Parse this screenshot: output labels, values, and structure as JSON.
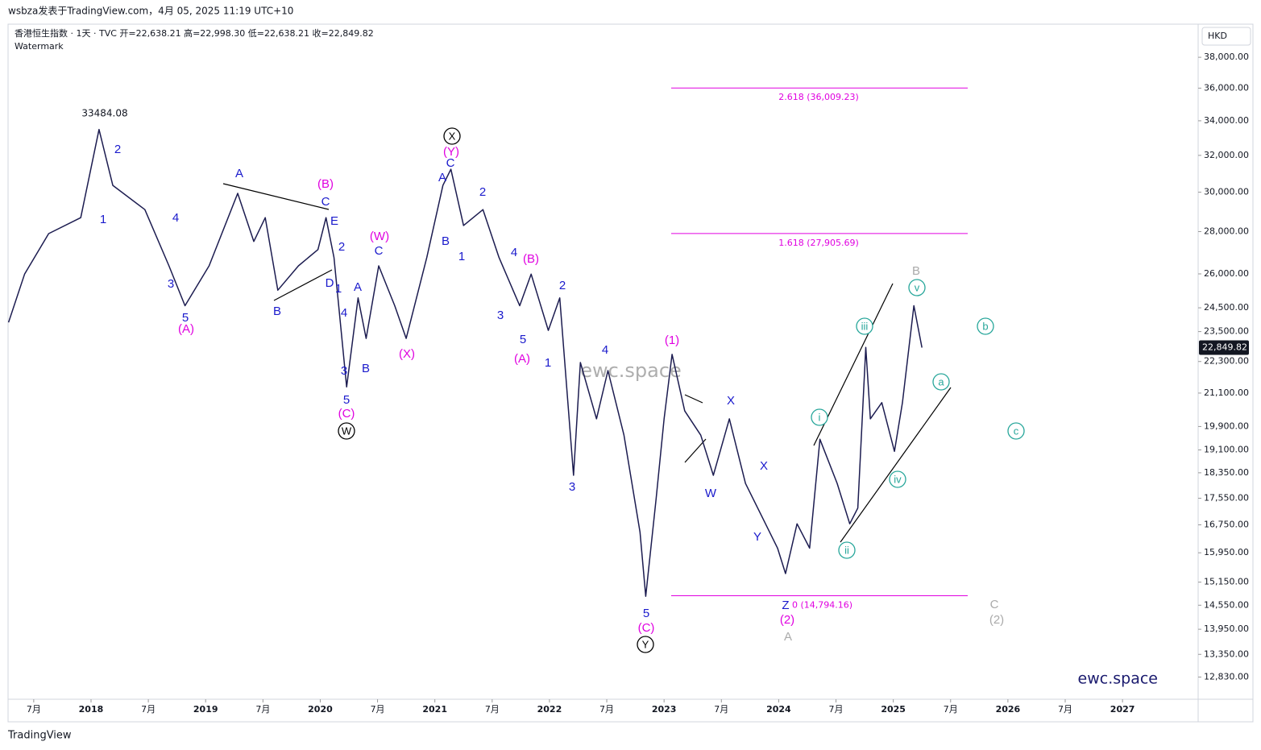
{
  "header": {
    "byline": "wsbza发表于TradingView.com，4月 05, 2025 11:19 UTC+10",
    "symbol": "香港恒生指数 · 1天 · TVC  开=22,638.21  高=22,998.30  低=22,638.21  收=22,849.82",
    "watermark_note": "Watermark"
  },
  "footer": {
    "brand": "TradingView",
    "site": "ewc.space"
  },
  "chart_data": {
    "type": "line",
    "log_scale": true,
    "color": "#1c1c50",
    "currency": "HKD",
    "watermark": "ewc.space",
    "high_label": "33484.08",
    "last_label": "22,849.82",
    "xlim": [
      2017.276,
      2027.66
    ],
    "ylim": [
      12340,
      40270
    ],
    "xticks": [
      {
        "value": 2017.5,
        "label": "7月"
      },
      2018,
      {
        "value": 2018.5,
        "label": "7月"
      },
      2019,
      {
        "value": 2019.5,
        "label": "7月"
      },
      2020,
      {
        "value": 2020.5,
        "label": "7月"
      },
      2021,
      {
        "value": 2021.5,
        "label": "7月"
      },
      2022,
      {
        "value": 2022.5,
        "label": "7月"
      },
      2023,
      {
        "value": 2023.5,
        "label": "7月"
      },
      2024,
      {
        "value": 2024.5,
        "label": "7月"
      },
      2025,
      {
        "value": 2025.5,
        "label": "7月"
      },
      2026,
      {
        "value": 2026.5,
        "label": "7月"
      },
      2027
    ],
    "yticks": [
      {
        "value": 38000,
        "label": "38,000.00"
      },
      {
        "value": 36000,
        "label": "36,000.00"
      },
      {
        "value": 34000,
        "label": "34,000.00"
      },
      {
        "value": 32000,
        "label": "32,000.00"
      },
      {
        "value": 30000,
        "label": "30,000.00"
      },
      {
        "value": 28000,
        "label": "28,000.00"
      },
      {
        "value": 26000,
        "label": "26,000.00"
      },
      {
        "value": 24500,
        "label": "24,500.00"
      },
      {
        "value": 23500,
        "label": "23,500.00"
      },
      {
        "value": 22300,
        "label": "22,300.00"
      },
      {
        "value": 21100,
        "label": "21,100.00"
      },
      {
        "value": 19900,
        "label": "19,900.00"
      },
      {
        "value": 19100,
        "label": "19,100.00"
      },
      {
        "value": 18350,
        "label": "18,350.00"
      },
      {
        "value": 17550,
        "label": "17,550.00"
      },
      {
        "value": 16750,
        "label": "16,750.00"
      },
      {
        "value": 15950,
        "label": "15,950.00"
      },
      {
        "value": 15150,
        "label": "15,150.00"
      },
      {
        "value": 14550,
        "label": "14,550.00"
      },
      {
        "value": 13950,
        "label": "13,950.00"
      },
      {
        "value": 13350,
        "label": "13,350.00"
      },
      {
        "value": 12830,
        "label": "12,830.00"
      }
    ],
    "x": [
      2017.28,
      2017.42,
      2017.63,
      2017.91,
      2018.07,
      2018.19,
      2018.47,
      2018.68,
      2018.82,
      2019.03,
      2019.28,
      2019.42,
      2019.52,
      2019.63,
      2019.81,
      2019.98,
      2020.05,
      2020.12,
      2020.23,
      2020.33,
      2020.4,
      2020.51,
      2020.65,
      2020.75,
      2020.93,
      2021.07,
      2021.14,
      2021.25,
      2021.42,
      2021.56,
      2021.74,
      2021.84,
      2021.99,
      2022.09,
      2022.21,
      2022.27,
      2022.41,
      2022.51,
      2022.65,
      2022.79,
      2022.84,
      2022.93,
      2023.0,
      2023.07,
      2023.18,
      2023.32,
      2023.43,
      2023.57,
      2023.71,
      2023.85,
      2023.99,
      2024.06,
      2024.16,
      2024.27,
      2024.36,
      2024.51,
      2024.62,
      2024.69,
      2024.76,
      2024.8,
      2024.9,
      2025.01,
      2025.08,
      2025.18,
      2025.25
    ],
    "values": [
      23880,
      25990,
      27900,
      28690,
      33484.08,
      30360,
      29100,
      26370,
      24590,
      26370,
      29940,
      27520,
      28690,
      25270,
      26370,
      27130,
      28690,
      26760,
      21330,
      24930,
      23220,
      26370,
      24590,
      23220,
      26760,
      30360,
      31230,
      28300,
      29100,
      26760,
      24590,
      25990,
      23550,
      24930,
      18270,
      22260,
      20170,
      21950,
      19600,
      16540,
      14780,
      17510,
      20170,
      22580,
      20450,
      19600,
      18270,
      20170,
      18010,
      17020,
      16080,
      15380,
      16780,
      16080,
      19460,
      18010,
      16780,
      17250,
      22860,
      20170,
      20750,
      19050,
      20750,
      24590,
      22849.82
    ],
    "fib_levels": [
      {
        "value": 36009.23,
        "label": "2.618 (36,009.23)"
      },
      {
        "value": 27905.69,
        "label": "1.618 (27,905.69)"
      },
      {
        "value": 14794.16,
        "label": "0 (14,794.16)"
      }
    ],
    "fib_color": "#e000e0",
    "annotations": [
      {
        "text": "1",
        "color": "#1a1acc"
      },
      {
        "text": "2",
        "color": "#1a1acc"
      },
      {
        "text": "3",
        "color": "#1a1acc"
      },
      {
        "text": "4",
        "color": "#1a1acc"
      },
      {
        "text": "5",
        "color": "#1a1acc"
      },
      {
        "text": "(A)",
        "color": "#e000e0"
      },
      {
        "text": "A",
        "color": "#1a1acc"
      },
      {
        "text": "B",
        "color": "#1a1acc"
      },
      {
        "text": "C",
        "color": "#1a1acc"
      },
      {
        "text": "(B)",
        "color": "#e000e0"
      },
      {
        "text": "D",
        "color": "#1a1acc"
      },
      {
        "text": "E",
        "color": "#1a1acc"
      },
      {
        "text": "2",
        "color": "#1a1acc"
      },
      {
        "text": "1",
        "color": "#1a1acc"
      },
      {
        "text": "4",
        "color": "#1a1acc"
      },
      {
        "text": "3",
        "color": "#1a1acc"
      },
      {
        "text": "5",
        "color": "#1a1acc"
      },
      {
        "text": "(C)",
        "color": "#e000e0"
      },
      {
        "text": "W",
        "color": "#000000",
        "circled": true
      },
      {
        "text": "A",
        "color": "#1a1acc"
      },
      {
        "text": "B",
        "color": "#1a1acc"
      },
      {
        "text": "C",
        "color": "#1a1acc"
      },
      {
        "text": "(W)",
        "color": "#e000e0"
      },
      {
        "text": "(X)",
        "color": "#e000e0"
      },
      {
        "text": "A",
        "color": "#1a1acc"
      },
      {
        "text": "B",
        "color": "#1a1acc"
      },
      {
        "text": "C",
        "color": "#1a1acc"
      },
      {
        "text": "(Y)",
        "color": "#e000e0"
      },
      {
        "text": "X",
        "color": "#000000",
        "circled": true
      },
      {
        "text": "2",
        "color": "#1a1acc"
      },
      {
        "text": "1",
        "color": "#1a1acc"
      },
      {
        "text": "4",
        "color": "#1a1acc"
      },
      {
        "text": "(B)",
        "color": "#e000e0"
      },
      {
        "text": "3",
        "color": "#1a1acc"
      },
      {
        "text": "5",
        "color": "#1a1acc"
      },
      {
        "text": "(A)",
        "color": "#e000e0"
      },
      {
        "text": "1",
        "color": "#1a1acc"
      },
      {
        "text": "2",
        "color": "#1a1acc"
      },
      {
        "text": "4",
        "color": "#1a1acc"
      },
      {
        "text": "3",
        "color": "#1a1acc"
      },
      {
        "text": "5",
        "color": "#1a1acc"
      },
      {
        "text": "(C)",
        "color": "#e000e0"
      },
      {
        "text": "Y",
        "color": "#000000",
        "circled": true
      },
      {
        "text": "(1)",
        "color": "#e000e0"
      },
      {
        "text": "X",
        "color": "#1a1acc"
      },
      {
        "text": "W",
        "color": "#1a1acc"
      },
      {
        "text": "X",
        "color": "#1a1acc"
      },
      {
        "text": "Y",
        "color": "#1a1acc"
      },
      {
        "text": "Z",
        "color": "#1a1acc"
      },
      {
        "text": "(2)",
        "color": "#e000e0"
      },
      {
        "text": "A",
        "color": "#aaaaaa"
      },
      {
        "text": "i",
        "color": "#26a69a",
        "circled": true
      },
      {
        "text": "ii",
        "color": "#26a69a",
        "circled": true
      },
      {
        "text": "iii",
        "color": "#26a69a",
        "circled": true
      },
      {
        "text": "iv",
        "color": "#26a69a",
        "circled": true
      },
      {
        "text": "v",
        "color": "#26a69a",
        "circled": true
      },
      {
        "text": "B",
        "color": "#aaaaaa"
      },
      {
        "text": "a",
        "color": "#26a69a",
        "circled": true
      },
      {
        "text": "b",
        "color": "#26a69a",
        "circled": true
      },
      {
        "text": "c",
        "color": "#26a69a",
        "circled": true
      },
      {
        "text": "C",
        "color": "#aaaaaa"
      },
      {
        "text": "(2)",
        "color": "#aaaaaa"
      }
    ]
  }
}
